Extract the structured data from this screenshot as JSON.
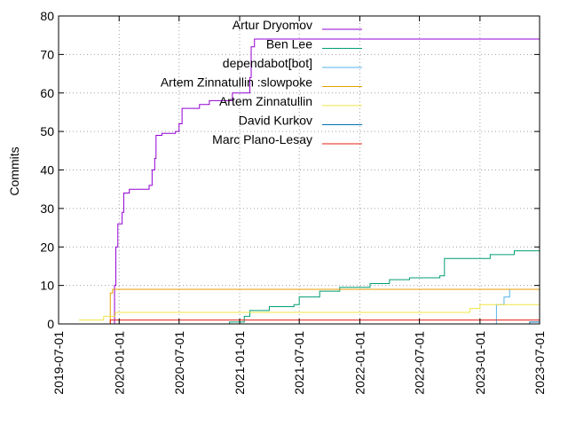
{
  "chart_data": {
    "type": "line",
    "ylabel": "Commits",
    "xlabel": "",
    "ylim": [
      0,
      80
    ],
    "xlim": [
      "2019-07-01",
      "2023-07-01"
    ],
    "y_ticks": [
      0,
      10,
      20,
      30,
      40,
      50,
      60,
      70,
      80
    ],
    "x_ticks": [
      "2019-07-01",
      "2020-01-01",
      "2020-07-01",
      "2021-01-01",
      "2021-07-01",
      "2022-01-01",
      "2022-07-01",
      "2023-01-01",
      "2023-07-01"
    ],
    "grid": true,
    "legend_position": "top-right",
    "series": [
      {
        "name": "Artur Dryomov",
        "color": "#9400d3",
        "points": [
          [
            "2019-12-15",
            0
          ],
          [
            "2019-12-18",
            10
          ],
          [
            "2019-12-22",
            20
          ],
          [
            "2019-12-28",
            26
          ],
          [
            "2020-01-10",
            29
          ],
          [
            "2020-01-15",
            34
          ],
          [
            "2020-02-01",
            35
          ],
          [
            "2020-04-01",
            36
          ],
          [
            "2020-04-10",
            40
          ],
          [
            "2020-04-18",
            43
          ],
          [
            "2020-04-22",
            49
          ],
          [
            "2020-05-10",
            49.5
          ],
          [
            "2020-06-20",
            50
          ],
          [
            "2020-07-01",
            52
          ],
          [
            "2020-07-10",
            56
          ],
          [
            "2020-09-01",
            57
          ],
          [
            "2020-10-01",
            58
          ],
          [
            "2020-12-10",
            60
          ],
          [
            "2021-02-01",
            64
          ],
          [
            "2021-02-05",
            72
          ],
          [
            "2021-02-15",
            74
          ],
          [
            "2023-07-01",
            74
          ]
        ]
      },
      {
        "name": "Ben Lee",
        "color": "#009e73",
        "points": [
          [
            "2020-10-01",
            0
          ],
          [
            "2020-12-01",
            0.5
          ],
          [
            "2021-01-15",
            2
          ],
          [
            "2021-02-01",
            3.5
          ],
          [
            "2021-04-01",
            4.5
          ],
          [
            "2021-06-15",
            5
          ],
          [
            "2021-07-01",
            7
          ],
          [
            "2021-09-01",
            8.5
          ],
          [
            "2021-11-01",
            9.5
          ],
          [
            "2022-02-01",
            10.5
          ],
          [
            "2022-04-01",
            11.5
          ],
          [
            "2022-06-01",
            12
          ],
          [
            "2022-09-01",
            12.5
          ],
          [
            "2022-09-15",
            17
          ],
          [
            "2022-12-01",
            17
          ],
          [
            "2023-02-01",
            18
          ],
          [
            "2023-04-15",
            19
          ],
          [
            "2023-07-01",
            19
          ]
        ]
      },
      {
        "name": "dependabot[bot]",
        "color": "#56b4e9",
        "points": [
          [
            "2023-02-10",
            0
          ],
          [
            "2023-02-20",
            5
          ],
          [
            "2023-03-15",
            7
          ],
          [
            "2023-04-01",
            9
          ]
        ]
      },
      {
        "name": "Artem Zinnatullin :slowpoke",
        "color": "#e69f00",
        "points": [
          [
            "2019-12-01",
            0
          ],
          [
            "2019-12-05",
            8
          ],
          [
            "2019-12-12",
            9
          ],
          [
            "2023-07-01",
            9
          ]
        ]
      },
      {
        "name": "Artem Zinnatullin",
        "color": "#f0e442",
        "points": [
          [
            "2019-09-01",
            1
          ],
          [
            "2019-11-15",
            2
          ],
          [
            "2019-12-20",
            3
          ],
          [
            "2022-10-01",
            3
          ],
          [
            "2022-12-01",
            4
          ],
          [
            "2023-01-01",
            5
          ],
          [
            "2023-07-01",
            5
          ]
        ]
      },
      {
        "name": "David Kurkov",
        "color": "#0072b2",
        "points": [
          [
            "2023-05-01",
            0
          ],
          [
            "2023-06-01",
            0.5
          ],
          [
            "2023-07-01",
            1
          ]
        ]
      },
      {
        "name": "Marc Plano-Lesay",
        "color": "#e51e10",
        "points": [
          [
            "2019-12-01",
            0
          ],
          [
            "2019-12-05",
            1
          ],
          [
            "2023-05-15",
            1
          ],
          [
            "2023-07-01",
            2
          ]
        ]
      }
    ]
  }
}
